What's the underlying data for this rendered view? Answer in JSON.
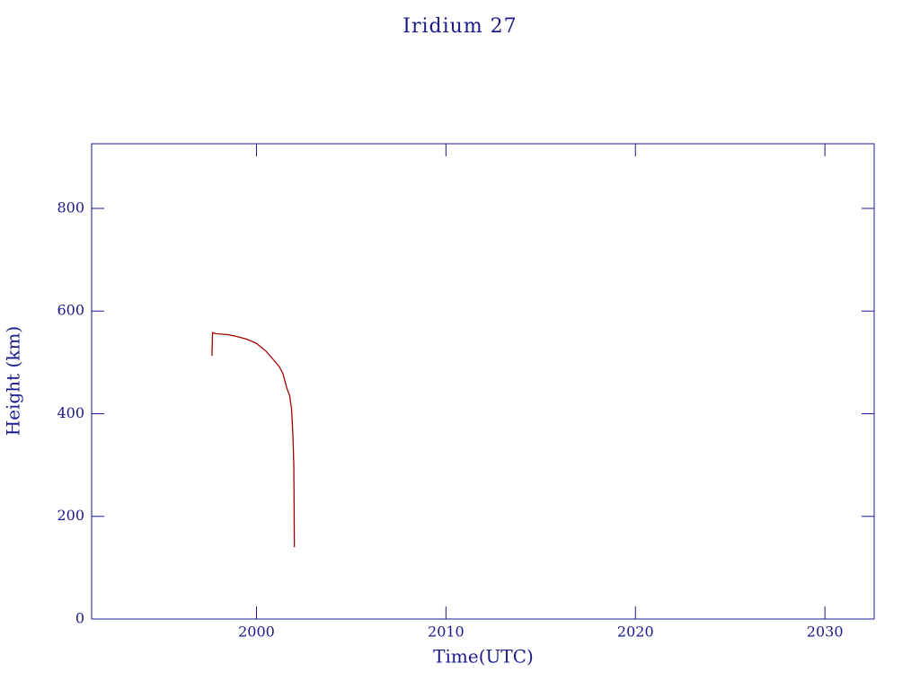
{
  "chart_data": {
    "type": "line",
    "title": "Iridium 27",
    "xlabel": "Time(UTC)",
    "ylabel": "Height (km)",
    "xlim": [
      1991.3,
      2032.6
    ],
    "xticks": [
      2000,
      2010,
      2020,
      2030
    ],
    "ylim": [
      0,
      926
    ],
    "yticks": [
      0,
      200,
      400,
      600,
      800
    ],
    "series": [
      {
        "name": "Iridium 27",
        "color": "#a00000",
        "x": [
          1997.65,
          1997.68,
          1997.85,
          1998.5,
          1999.0,
          1999.5,
          2000.0,
          2000.5,
          2000.9,
          2001.2,
          2001.4,
          2001.6,
          2001.75,
          2001.85,
          2001.92,
          2001.97,
          2002.0
        ],
        "values": [
          513,
          558,
          556,
          554,
          550,
          545,
          537,
          522,
          505,
          492,
          478,
          450,
          435,
          410,
          360,
          300,
          140
        ]
      }
    ]
  }
}
